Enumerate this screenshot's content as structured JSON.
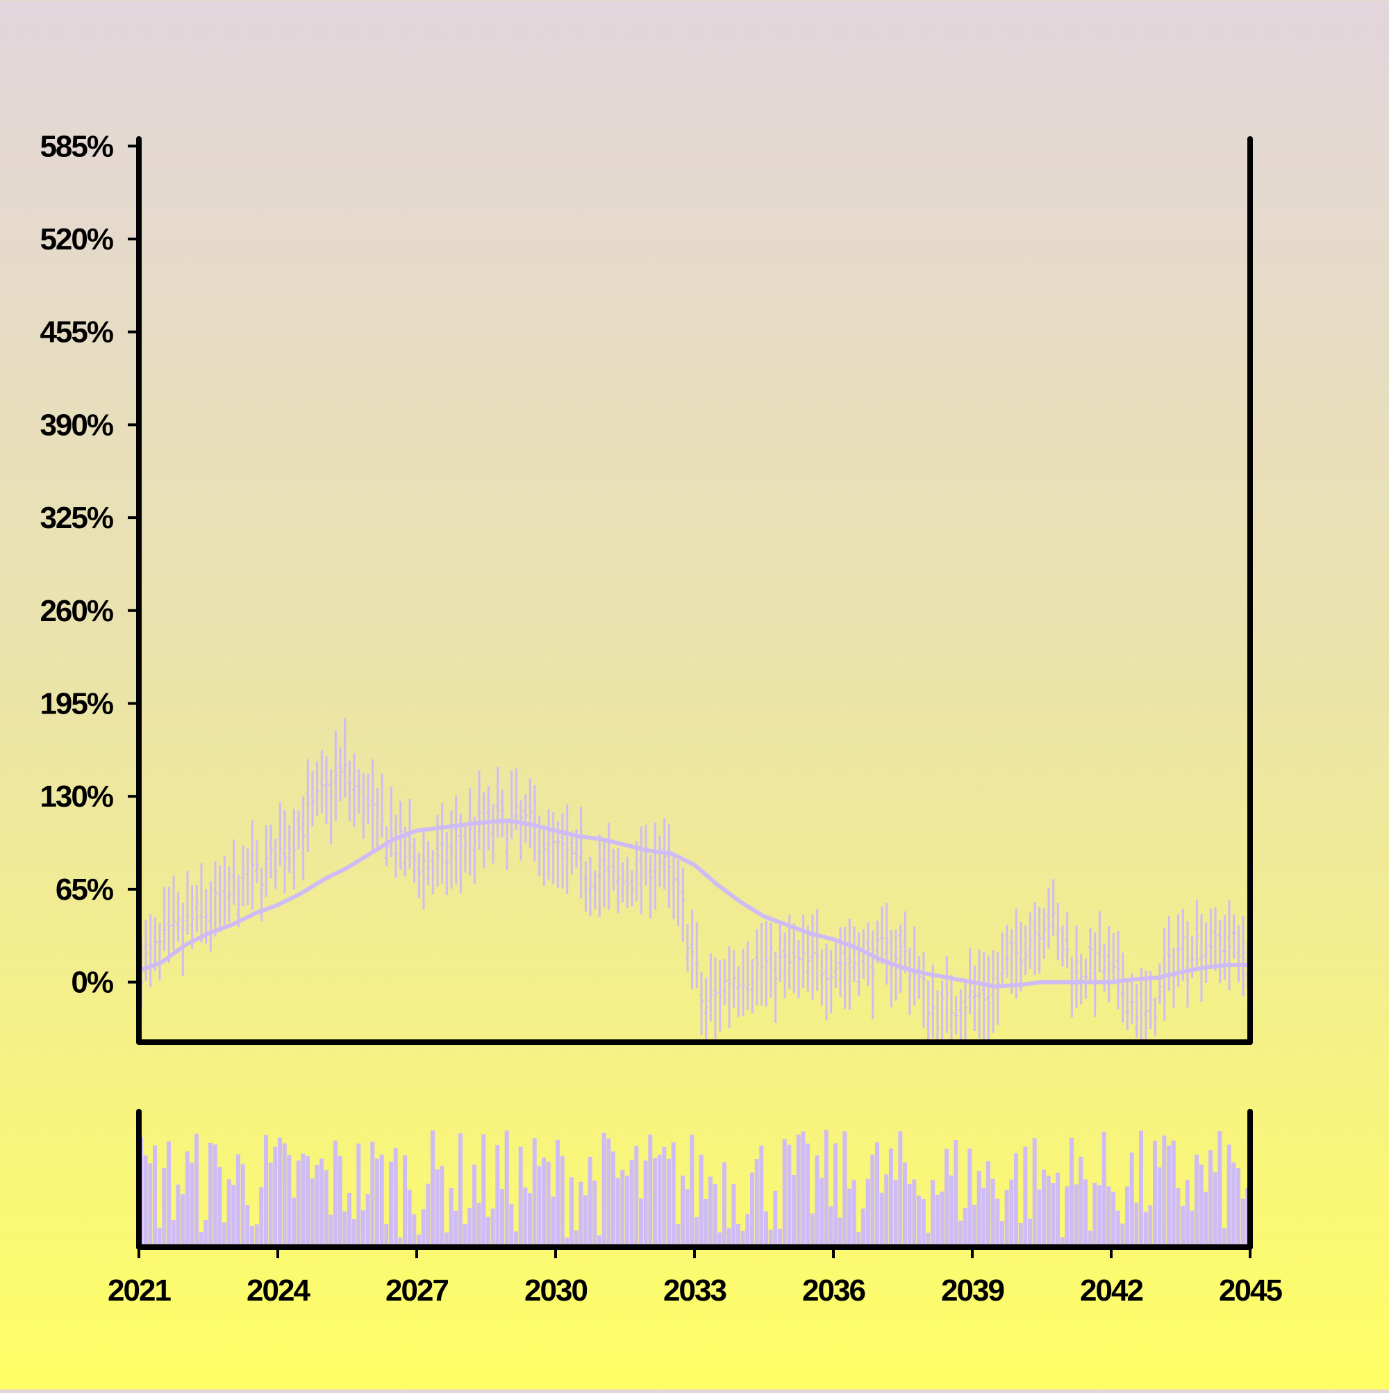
{
  "colors": {
    "series": "#cfbcf5",
    "axis": "#000000",
    "background_top": "#e2d5dd",
    "background_bottom": "#fffe64"
  },
  "chart_data": {
    "type": "ohlc",
    "x_unit": "year",
    "y_unit": "percent",
    "xlim": [
      2021,
      2045
    ],
    "ylim": [
      -42,
      590
    ],
    "grid": false,
    "legend": "none",
    "x_ticks": [
      "2021",
      "2024",
      "2027",
      "2030",
      "2033",
      "2036",
      "2039",
      "2042",
      "2045"
    ],
    "y_ticks": [
      "0%",
      "65%",
      "130%",
      "195%",
      "260%",
      "325%",
      "390%",
      "455%",
      "520%",
      "585%"
    ],
    "price_anchors": {
      "x": [
        2021.0,
        2022.0,
        2023.0,
        2024.0,
        2024.7,
        2025.4,
        2026.0,
        2026.8,
        2027.4,
        2028.4,
        2029.3,
        2030.0,
        2030.7,
        2031.4,
        2032.2,
        2032.7,
        2033.2,
        2033.8,
        2034.6,
        2035.5,
        2036.6,
        2037.5,
        2038.2,
        2038.8,
        2039.4,
        2040.0,
        2040.6,
        2041.2,
        2041.8,
        2042.4,
        2042.8,
        2043.5,
        2044.2,
        2044.95
      ],
      "y": [
        10,
        40,
        60,
        88,
        118,
        148,
        118,
        88,
        80,
        110,
        112,
        92,
        78,
        68,
        88,
        58,
        -20,
        5,
        12,
        12,
        16,
        22,
        -22,
        -12,
        -8,
        22,
        48,
        10,
        12,
        -12,
        -26,
        26,
        30,
        22
      ]
    },
    "moving_average": {
      "x": [
        2021.0,
        2021.5,
        2022.0,
        2022.5,
        2023.0,
        2023.5,
        2024.0,
        2024.5,
        2025.0,
        2025.5,
        2026.0,
        2026.5,
        2027.0,
        2027.5,
        2028.0,
        2028.5,
        2029.0,
        2029.5,
        2030.0,
        2030.5,
        2031.0,
        2031.5,
        2032.0,
        2032.5,
        2033.0,
        2033.5,
        2034.0,
        2034.5,
        2035.0,
        2035.5,
        2036.0,
        2036.5,
        2037.0,
        2037.5,
        2038.0,
        2038.5,
        2039.0,
        2039.5,
        2040.0,
        2040.5,
        2041.0,
        2041.5,
        2042.0,
        2042.5,
        2043.0,
        2043.5,
        2044.0,
        2044.5,
        2044.95
      ],
      "y": [
        8,
        14,
        26,
        34,
        40,
        48,
        54,
        62,
        72,
        80,
        90,
        100,
        106,
        108,
        110,
        112,
        113,
        110,
        106,
        102,
        100,
        96,
        92,
        90,
        82,
        68,
        56,
        46,
        40,
        34,
        30,
        24,
        16,
        10,
        6,
        3,
        0,
        -3,
        -2,
        0,
        0,
        0,
        0,
        2,
        3,
        7,
        10,
        12,
        12
      ]
    },
    "volume_range": [
      0,
      1
    ]
  }
}
